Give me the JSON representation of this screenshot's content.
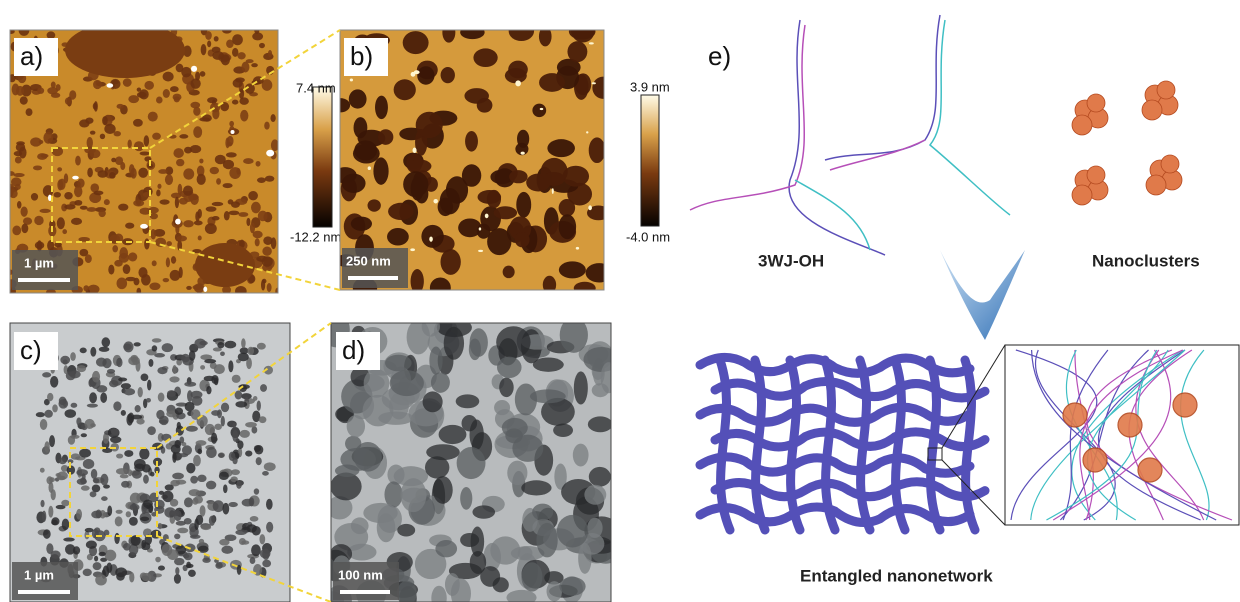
{
  "panels": {
    "a": {
      "label": "a)",
      "scale_bar": "1 µm",
      "colorbar": {
        "max": "7.4 nm",
        "min": "-12.2 nm"
      }
    },
    "b": {
      "label": "b)",
      "scale_bar": "250 nm",
      "colorbar": {
        "max": "3.9 nm",
        "min": "-4.0 nm"
      }
    },
    "c": {
      "label": "c)",
      "scale_bar": "1 µm"
    },
    "d": {
      "label": "d)",
      "scale_bar": "100 nm"
    },
    "e": {
      "label": "e)",
      "strand_label": "3WJ-OH",
      "cluster_label": "Nanoclusters",
      "network_label": "Entangled nanonetwork"
    }
  }
}
